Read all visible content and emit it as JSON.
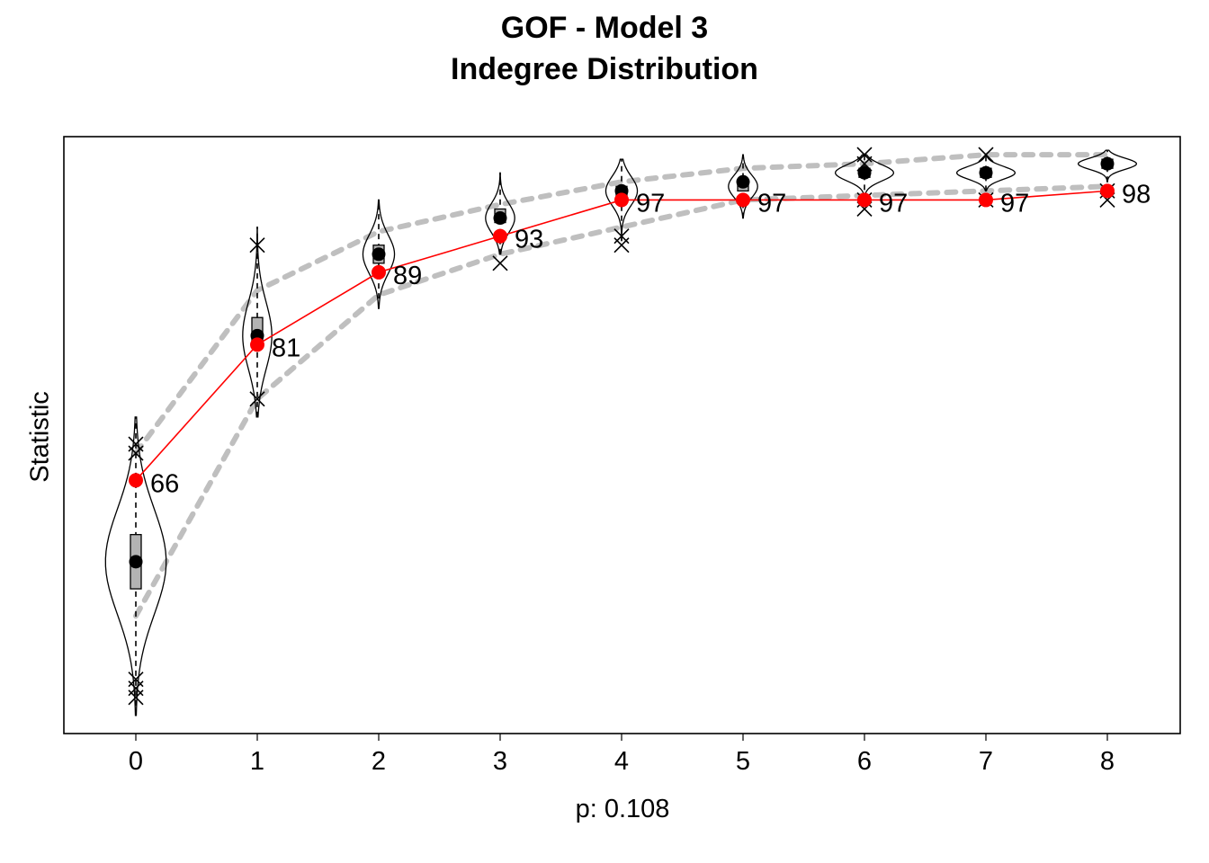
{
  "chart_data": {
    "type": "line",
    "title": "GOF - Model 3",
    "subtitle": "Indegree Distribution",
    "xlabel": "p: 0.108",
    "ylabel": "Statistic",
    "categories": [
      "0",
      "1",
      "2",
      "3",
      "4",
      "5",
      "6",
      "7",
      "8"
    ],
    "ylim": [
      38,
      104
    ],
    "grid": false,
    "series": [
      {
        "role": "observed",
        "color": "#ff0000",
        "values": [
          66,
          81,
          89,
          93,
          97,
          97,
          97,
          97,
          98
        ],
        "labels": [
          "66",
          "81",
          "89",
          "93",
          "97",
          "97",
          "97",
          "97",
          "98"
        ]
      },
      {
        "role": "simulated-mean",
        "color": "#000000",
        "values": [
          57,
          82,
          91,
          95,
          98,
          99,
          100,
          100,
          101
        ]
      },
      {
        "role": "upper-bound",
        "color": "#bfbfbf",
        "values": [
          69,
          87,
          93.5,
          96.5,
          99,
          100.5,
          101,
          102,
          102
        ]
      },
      {
        "role": "lower-bound",
        "color": "#bfbfbf",
        "values": [
          51,
          75,
          86.5,
          91,
          94,
          97,
          97.5,
          98,
          98.5
        ]
      }
    ],
    "violins": [
      {
        "x": "0",
        "lo": 40,
        "hi": 73,
        "mode": 57,
        "width": 0.25,
        "q1": 54,
        "q3": 60,
        "outliers": [
          42,
          43,
          44,
          69,
          70
        ]
      },
      {
        "x": "1",
        "lo": 73,
        "hi": 94,
        "mode": 82,
        "width": 0.12,
        "q1": 81,
        "q3": 84,
        "outliers": [
          75,
          92
        ]
      },
      {
        "x": "2",
        "lo": 85,
        "hi": 97,
        "mode": 91,
        "width": 0.13,
        "q1": 90,
        "q3": 92,
        "outliers": []
      },
      {
        "x": "3",
        "lo": 91,
        "hi": 100,
        "mode": 95,
        "width": 0.12,
        "q1": 94.5,
        "q3": 96,
        "outliers": [
          90
        ]
      },
      {
        "x": "4",
        "lo": 92.5,
        "hi": 101.5,
        "mode": 98,
        "width": 0.13,
        "q1": 97,
        "q3": 98.5,
        "outliers": [
          92,
          93
        ]
      },
      {
        "x": "5",
        "lo": 95,
        "hi": 102,
        "mode": 98.5,
        "width": 0.12,
        "q1": 98,
        "q3": 99,
        "outliers": []
      },
      {
        "x": "6",
        "lo": 97,
        "hi": 102,
        "mode": 100,
        "width": 0.24,
        "q1": 99.5,
        "q3": 100.5,
        "outliers": [
          96,
          97,
          101,
          102
        ]
      },
      {
        "x": "7",
        "lo": 98,
        "hi": 102,
        "mode": 100,
        "width": 0.24,
        "q1": 99.5,
        "q3": 100.5,
        "outliers": [
          97,
          102
        ]
      },
      {
        "x": "8",
        "lo": 99,
        "hi": 102.5,
        "mode": 101,
        "width": 0.24,
        "q1": 100.5,
        "q3": 101.5,
        "outliers": [
          97,
          98
        ]
      }
    ]
  }
}
